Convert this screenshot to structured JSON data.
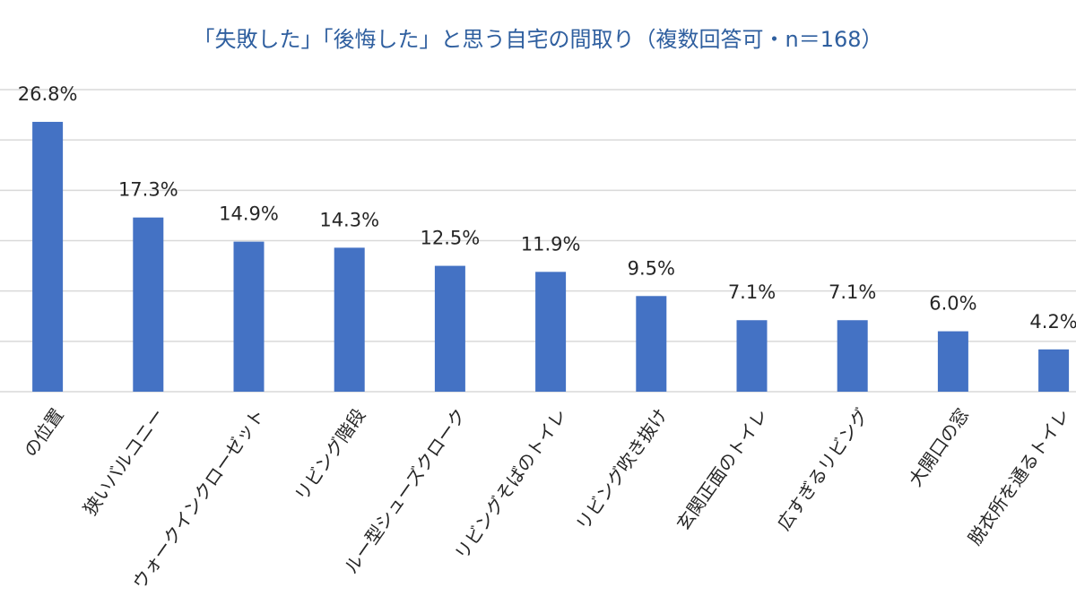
{
  "chart_data": {
    "type": "bar",
    "title": "「失敗した」「後悔した」と思う自宅の間取り（複数回答可・n＝168）",
    "categories": [
      "の位置",
      "狭いバルコニー",
      "ウォークインクローゼット",
      "リビング階段",
      "ルー型シューズクローク",
      "リビングそばのトイレ",
      "リビング吹き抜け",
      "玄関正面のトイレ",
      "広すぎるリビング",
      "大開口の窓",
      "脱衣所を通るトイレ"
    ],
    "values": [
      26.8,
      17.3,
      14.9,
      14.3,
      12.5,
      11.9,
      9.5,
      7.1,
      7.1,
      6.0,
      4.2
    ],
    "value_labels": [
      "26.8%",
      "17.3%",
      "14.9%",
      "14.3%",
      "12.5%",
      "11.9%",
      "9.5%",
      "7.1%",
      "7.1%",
      "6.0%",
      "4.2%"
    ],
    "color": "#4472c4",
    "ylim": [
      0,
      30
    ],
    "yticks": [
      0,
      5,
      10,
      15,
      20,
      25,
      30
    ],
    "grid": true
  }
}
